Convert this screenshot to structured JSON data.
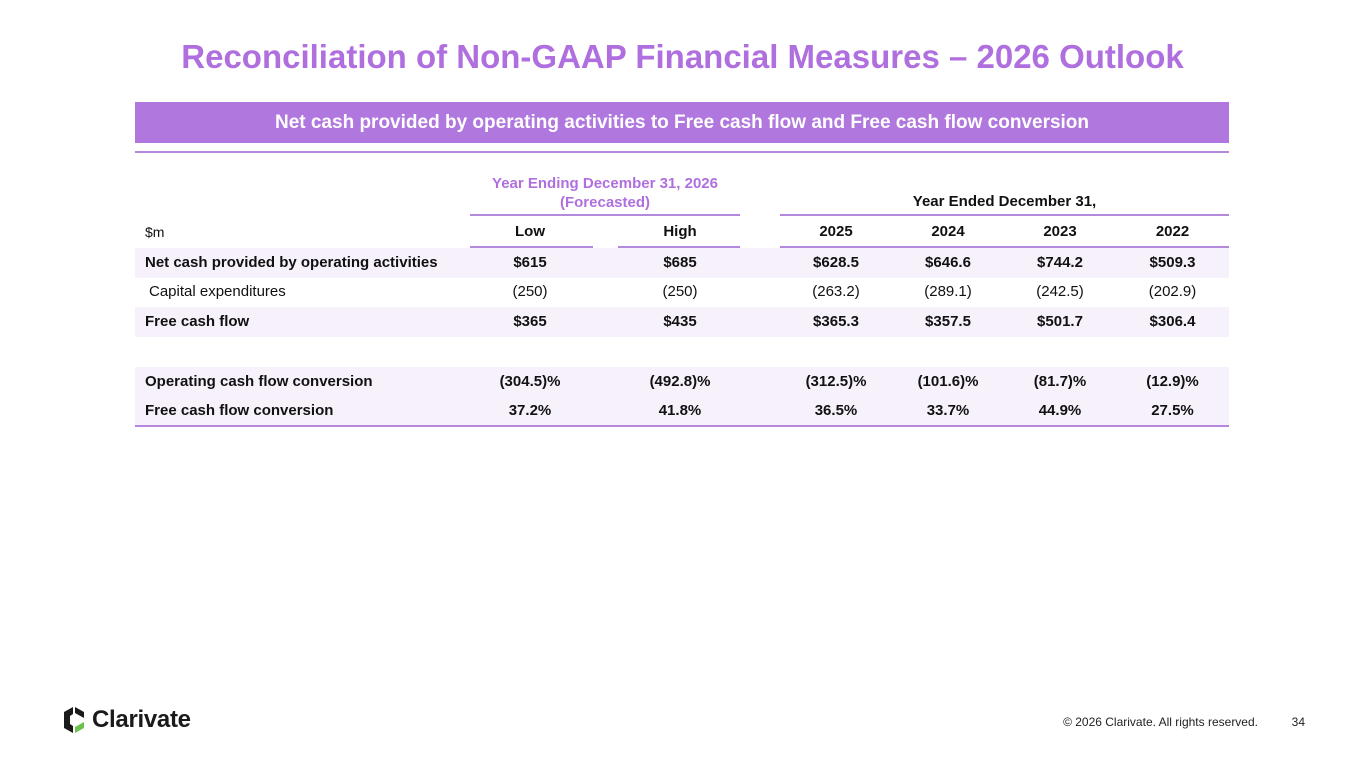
{
  "title": "Reconciliation of Non-GAAP Financial Measures – 2026 Outlook",
  "banner": "Net cash provided by operating activities to Free cash flow and Free cash flow conversion",
  "groups": {
    "forecast_line1": "Year Ending December 31, 2026",
    "forecast_line2": "(Forecasted)",
    "actual": "Year Ended December 31,"
  },
  "header": {
    "unit": "$m",
    "cols": [
      "Low",
      "High",
      "2025",
      "2024",
      "2023",
      "2022"
    ]
  },
  "rows": [
    {
      "label": "Net cash provided by operating activities",
      "values": [
        "$615",
        "$685",
        "$628.5",
        "$646.6",
        "$744.2",
        "$509.3"
      ]
    },
    {
      "label": "Capital expenditures",
      "values": [
        "(250)",
        "(250)",
        "(263.2)",
        "(289.1)",
        "(242.5)",
        "(202.9)"
      ]
    },
    {
      "label": "Free cash flow",
      "values": [
        "$365",
        "$435",
        "$365.3",
        "$357.5",
        "$501.7",
        "$306.4"
      ]
    },
    {
      "label": "Operating cash flow conversion",
      "values": [
        "(304.5)%",
        "(492.8)%",
        "(312.5)%",
        "(101.6)%",
        "(81.7)%",
        "(12.9)%"
      ]
    },
    {
      "label": "Free cash flow conversion",
      "values": [
        "37.2%",
        "41.8%",
        "36.5%",
        "33.7%",
        "44.9%",
        "27.5%"
      ]
    }
  ],
  "footer": {
    "brand": "Clarivate",
    "copyright": "© 2026 Clarivate. All rights reserved.",
    "page": "34"
  },
  "colors": {
    "accent": "#b06fde",
    "banner": "#b077de",
    "rule": "#b488dc",
    "shade": "#f7f1fc"
  }
}
